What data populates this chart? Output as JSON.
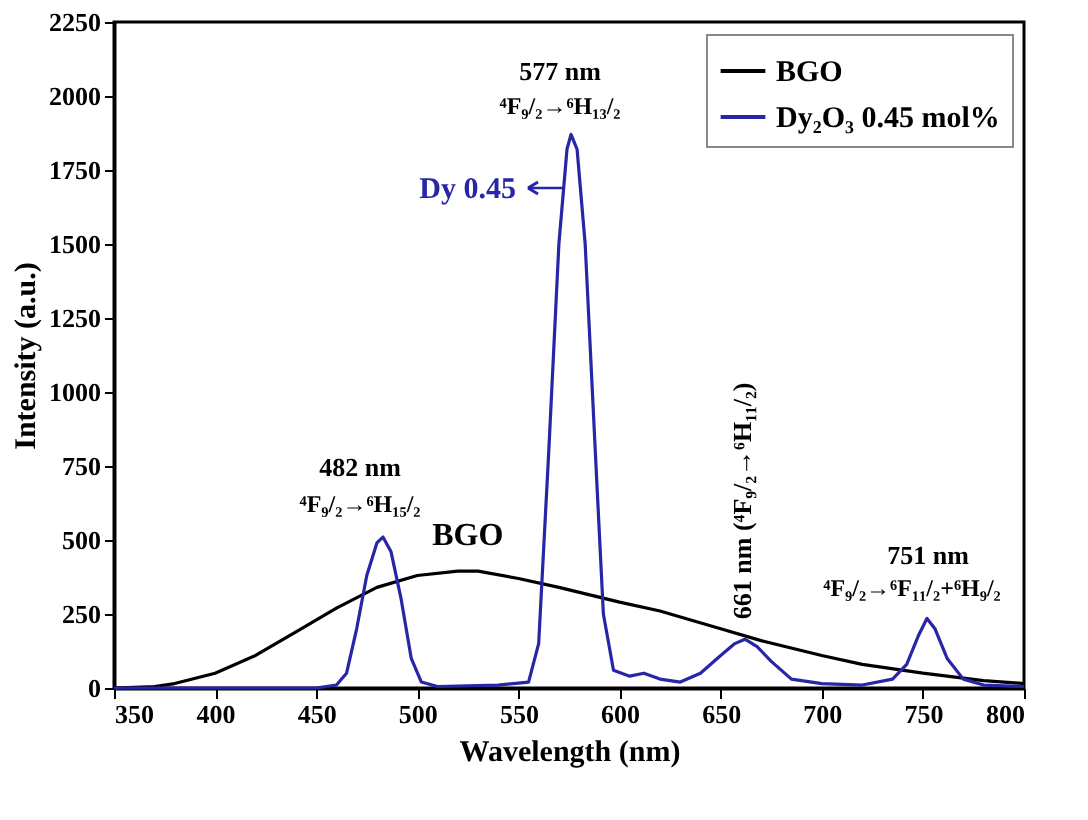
{
  "chart_data": {
    "type": "line",
    "xlabel": "Wavelength (nm)",
    "ylabel": "Intensity (a.u.)",
    "xlim": [
      350,
      800
    ],
    "xticks": [
      350,
      400,
      450,
      500,
      550,
      600,
      650,
      700,
      750,
      800
    ],
    "ylim": [
      0,
      2250
    ],
    "yticks": [
      0,
      250,
      500,
      750,
      1000,
      1250,
      1500,
      1750,
      2000,
      2250
    ],
    "grid": false,
    "legend": "top right",
    "line_style": "solid",
    "marker": "none",
    "series": [
      {
        "name": "BGO",
        "color": "#000000",
        "x": [
          350,
          370,
          380,
          400,
          420,
          440,
          460,
          480,
          500,
          520,
          530,
          550,
          570,
          600,
          620,
          650,
          670,
          700,
          720,
          750,
          780,
          800
        ],
        "values": [
          0,
          5,
          15,
          50,
          110,
          190,
          270,
          340,
          380,
          395,
          395,
          370,
          340,
          290,
          260,
          200,
          160,
          110,
          80,
          50,
          25,
          15
        ]
      },
      {
        "name": "Dy₂O₃ 0.45 mol%",
        "color": "#2626a6",
        "x": [
          350,
          450,
          460,
          465,
          470,
          475,
          480,
          483,
          487,
          492,
          497,
          502,
          510,
          540,
          555,
          560,
          565,
          570,
          574,
          576,
          579,
          583,
          588,
          592,
          597,
          605,
          612,
          620,
          630,
          640,
          650,
          657,
          662,
          668,
          675,
          685,
          700,
          720,
          735,
          742,
          748,
          752,
          756,
          762,
          770,
          780,
          800
        ],
        "values": [
          0,
          0,
          10,
          50,
          200,
          380,
          490,
          510,
          460,
          300,
          100,
          20,
          5,
          10,
          20,
          150,
          800,
          1500,
          1820,
          1870,
          1820,
          1500,
          800,
          250,
          60,
          40,
          50,
          30,
          20,
          50,
          110,
          150,
          165,
          140,
          90,
          30,
          15,
          10,
          30,
          80,
          180,
          235,
          200,
          100,
          30,
          10,
          5
        ]
      }
    ],
    "annotations": [
      "577 nm",
      "⁴F₉/₂→⁶H₁₃/₂",
      "Dy 0.45",
      "482 nm",
      "⁴F₉/₂→⁶H₁₅/₂",
      {
        "text": "BGO",
        "x": 520,
        "y": 395
      },
      {
        "text": "661 nm  (⁴F₉/₂→⁶H₁₁/₂)",
        "x": 661,
        "y": 165
      },
      "751 nm",
      "⁴F₉/₂→⁶F₁₁/₂+⁶H₉/₂"
    ]
  }
}
